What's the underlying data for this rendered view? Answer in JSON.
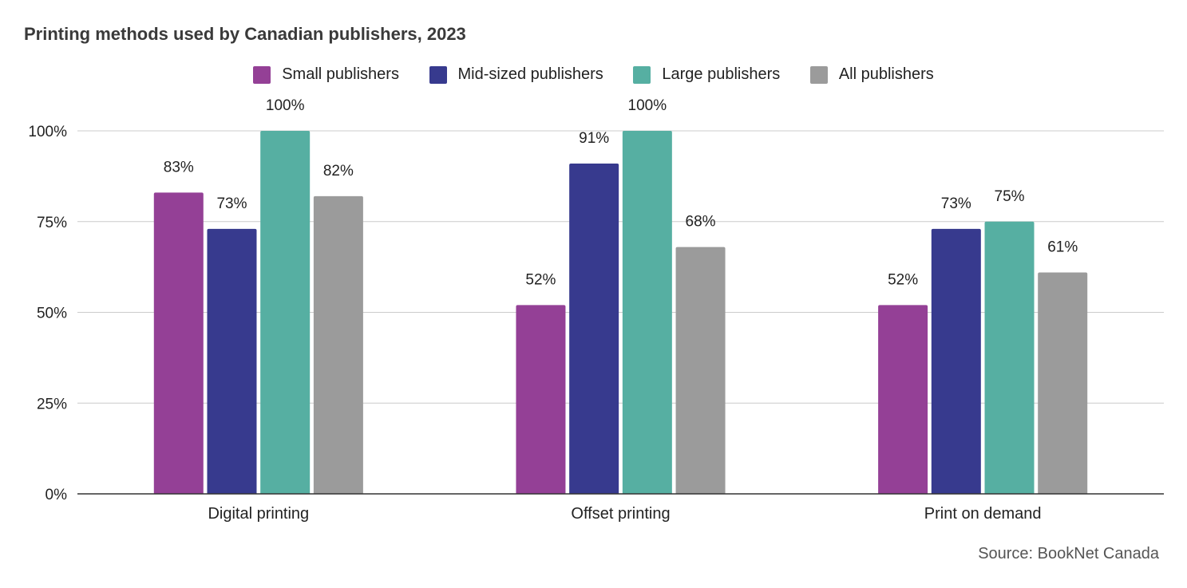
{
  "chart_data": {
    "type": "bar",
    "title": "Printing methods used by Canadian publishers, 2023",
    "categories": [
      "Digital printing",
      "Offset printing",
      "Print on demand"
    ],
    "series": [
      {
        "name": "Small publishers",
        "values": [
          83,
          52,
          52
        ],
        "labels": [
          "83%",
          "52%",
          "52%"
        ],
        "color": "#944096"
      },
      {
        "name": "Mid-sized publishers",
        "values": [
          73,
          91,
          73
        ],
        "labels": [
          "73%",
          "91%",
          "73%"
        ],
        "color": "#373a8e"
      },
      {
        "name": "Large publishers",
        "values": [
          100,
          100,
          75
        ],
        "labels": [
          "100%",
          "100%",
          "75%"
        ],
        "color": "#56afa2"
      },
      {
        "name": "All publishers",
        "values": [
          82,
          68,
          61
        ],
        "labels": [
          "82%",
          "68%",
          "61%"
        ],
        "color": "#9b9b9b"
      }
    ],
    "ylim": [
      0,
      100
    ],
    "yticks": [
      0,
      25,
      50,
      75,
      100
    ],
    "ytick_labels": [
      "0%",
      "25%",
      "50%",
      "75%",
      "100%"
    ],
    "xlabel": "",
    "ylabel": "",
    "grid": true,
    "legend_position": "top",
    "source": "Source: BookNet Canada"
  }
}
